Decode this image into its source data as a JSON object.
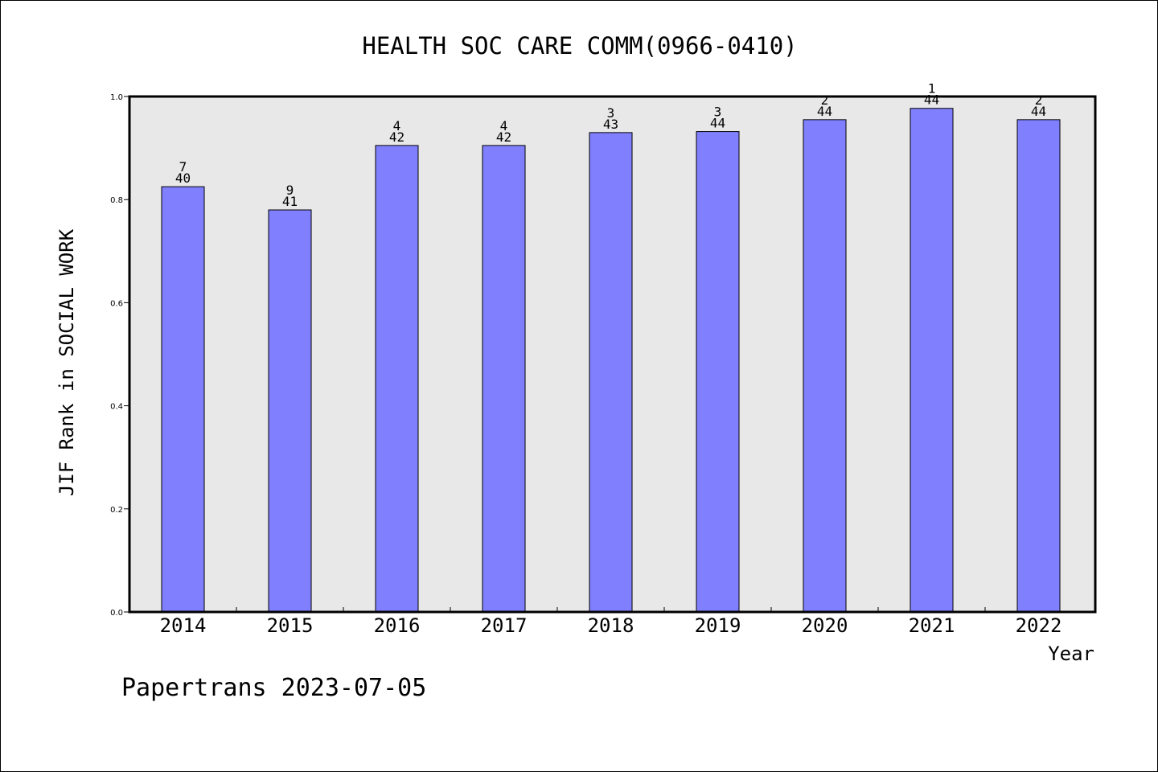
{
  "chart_data": {
    "type": "bar",
    "title": "HEALTH SOC CARE COMM(0966-0410)",
    "xlabel": "Year",
    "ylabel": "JIF Rank in SOCIAL WORK",
    "ylim": [
      0,
      1.0
    ],
    "yticks": [
      "0.0",
      "0.2",
      "0.4",
      "0.6",
      "0.8",
      "1.0"
    ],
    "categories": [
      "2014",
      "2015",
      "2016",
      "2017",
      "2018",
      "2019",
      "2020",
      "2021",
      "2022"
    ],
    "values": [
      0.825,
      0.78,
      0.905,
      0.905,
      0.93,
      0.932,
      0.955,
      0.977,
      0.955
    ],
    "rank": [
      "7",
      "9",
      "4",
      "4",
      "3",
      "3",
      "2",
      "1",
      "2"
    ],
    "total": [
      "40",
      "41",
      "42",
      "42",
      "43",
      "44",
      "44",
      "44",
      "44"
    ],
    "bar_color": "#8080ff",
    "plot_background": "#e8e8e8",
    "grid": false,
    "legend": "none"
  },
  "footer": "Papertrans 2023-07-05"
}
